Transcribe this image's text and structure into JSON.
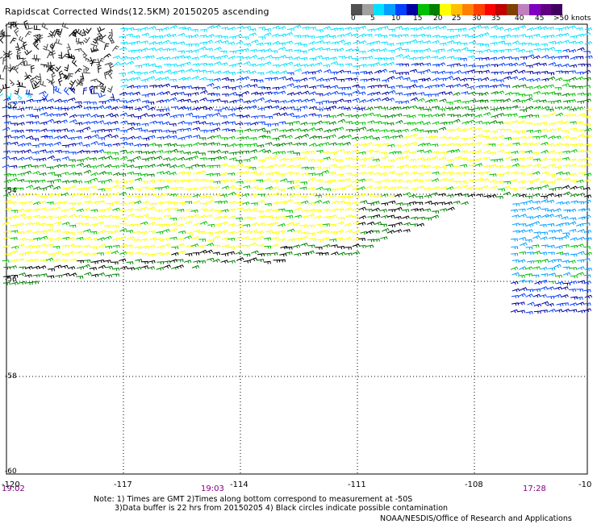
{
  "header": {
    "title": "Rapidscat Corrected Winds(12.5KM) 20150205 ascending"
  },
  "legend": {
    "colors": [
      "#505050",
      "#a0a0a0",
      "#00e0ff",
      "#00a0ff",
      "#0040ff",
      "#0000a0",
      "#00c000",
      "#008000",
      "#ffff00",
      "#ffc000",
      "#ff8000",
      "#ff4000",
      "#ff0000",
      "#c00000",
      "#804000",
      "#c080c0",
      "#8000c0",
      "#600080",
      "#400060"
    ],
    "labels": [
      "0",
      "5",
      "10",
      "15",
      "20",
      "25",
      "30",
      "35",
      "40",
      "45",
      ">50 knots"
    ]
  },
  "axes": {
    "lon_labels": [
      "-120",
      "-117",
      "-114",
      "-111",
      "-108",
      "-10"
    ],
    "lat_labels": [
      "-50",
      "-52",
      "-54",
      "-56",
      "-58",
      "-60"
    ],
    "time_labels": [
      "19:02",
      "19:03",
      "17:28"
    ]
  },
  "notes": {
    "line1": "Note: 1) Times are GMT 2)Times along bottom correspond to measurement at -50S",
    "line2": "3)Data buffer is 22 hrs from 20150205 4) Black circles indicate possible contamination"
  },
  "credit": "NOAA/NESDIS/Office of Research and Applications"
}
